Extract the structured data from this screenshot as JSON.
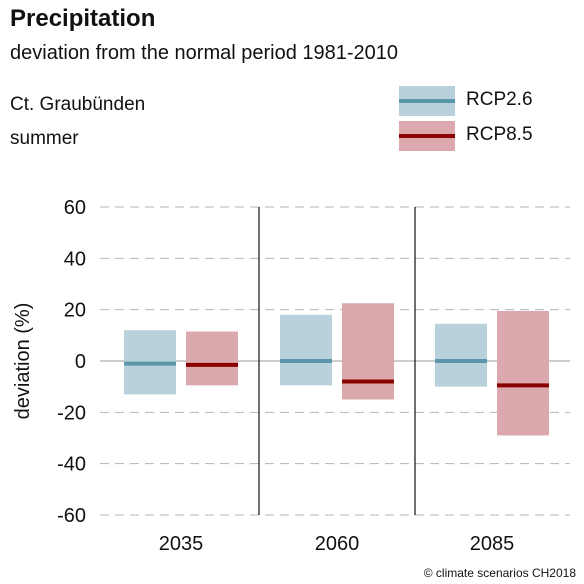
{
  "header": {
    "title": "Precipitation",
    "subtitle": "deviation from the normal period 1981-2010",
    "region": "Ct. Graubünden",
    "season": "summer"
  },
  "legend": [
    {
      "name": "RCP2.6",
      "box_color": "#b8d1da",
      "line_color": "#5b96aa"
    },
    {
      "name": "RCP8.5",
      "box_color": "#dba9ad",
      "line_color": "#8b0000"
    }
  ],
  "footer": {
    "credit": "© climate scenarios CH2018"
  },
  "chart_data": {
    "type": "bar",
    "subtype": "range-box-with-median",
    "categories": [
      "2035",
      "2060",
      "2085"
    ],
    "ylabel": "deviation (%)",
    "ylim": [
      -60,
      60
    ],
    "yticks": [
      60,
      40,
      20,
      0,
      -20,
      -40,
      -60
    ],
    "grid": "dashed horizontal",
    "series": [
      {
        "name": "RCP2.6",
        "box_color": "#b8d1da",
        "median_color": "#5b96aa",
        "low": [
          -13,
          -9.5,
          -10
        ],
        "high": [
          12,
          18,
          14.5
        ],
        "median": [
          -1,
          0,
          0
        ]
      },
      {
        "name": "RCP8.5",
        "box_color": "#dba9ad",
        "median_color": "#8b0000",
        "low": [
          -9.5,
          -15,
          -29
        ],
        "high": [
          11.5,
          22.5,
          19.5
        ],
        "median": [
          -1.5,
          -8,
          -9.5
        ]
      }
    ]
  }
}
